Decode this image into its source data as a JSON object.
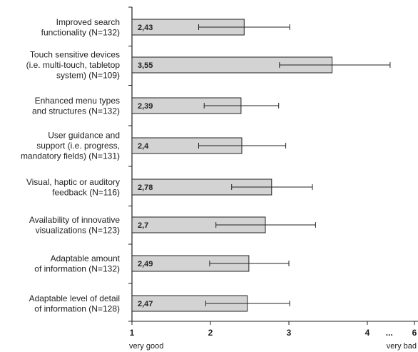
{
  "chart_data": {
    "type": "bar",
    "orientation": "horizontal",
    "categories": [
      [
        "Improved search",
        "functionality (N=132)"
      ],
      [
        "Touch sensitive devices",
        "(i.e. multi-touch, tabletop",
        "system) (N=109)"
      ],
      [
        "Enhanced menu types",
        "and structures (N=132)"
      ],
      [
        "User guidance and",
        "support (i.e. progress,",
        "mandatory fields) (N=131)"
      ],
      [
        "Visual, haptic or auditory",
        "feedback (N=116)"
      ],
      [
        "Availability of innovative",
        "visualizations (N=123)"
      ],
      [
        "Adaptable amount",
        "of information (N=132)"
      ],
      [
        "Adaptable level of detail",
        "of information (N=128)"
      ]
    ],
    "values": [
      2.43,
      3.55,
      2.39,
      2.4,
      2.78,
      2.7,
      2.49,
      2.47
    ],
    "value_labels": [
      "2,43",
      "3,55",
      "2,39",
      "2,4",
      "2,78",
      "2,7",
      "2,49",
      "2,47"
    ],
    "error_low": [
      1.85,
      2.88,
      1.92,
      1.85,
      2.27,
      2.07,
      1.99,
      1.94
    ],
    "error_high": [
      3.01,
      4.29,
      2.87,
      2.96,
      3.3,
      3.34,
      3.0,
      3.01
    ],
    "x_ticks": [
      "1",
      "2",
      "3",
      "4",
      "...",
      "6"
    ],
    "x_tick_values": [
      1,
      2,
      3,
      4,
      4.28,
      4.6
    ],
    "xlim": [
      1,
      4.6
    ],
    "x_end_labels": {
      "left": "very good",
      "right": "very bad"
    },
    "bar_color": "#d3d3d3",
    "bar_stroke": "#222222",
    "grid": false
  }
}
